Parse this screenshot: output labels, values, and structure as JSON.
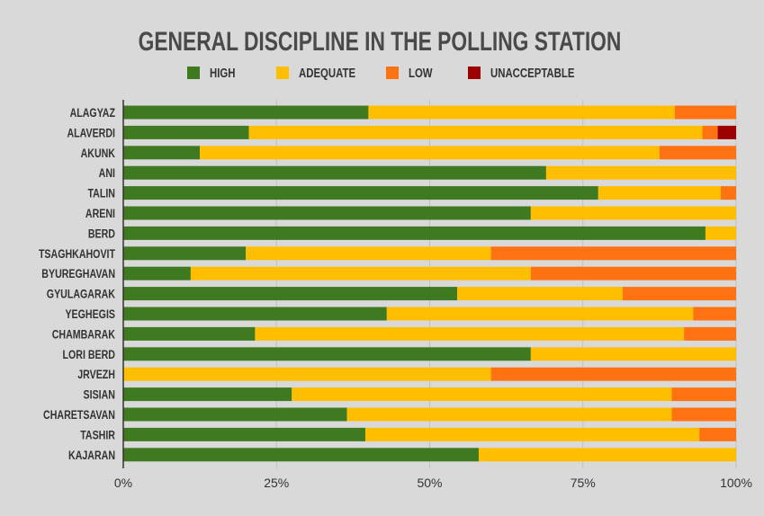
{
  "chart_data": {
    "type": "bar",
    "orientation": "horizontal",
    "stacked": true,
    "title": "GENERAL DISCIPLINE IN THE POLLING STATION",
    "legend_position": "top",
    "grid": true,
    "xlim": [
      0,
      100
    ],
    "x_ticks": [
      "0%",
      "25%",
      "50%",
      "75%",
      "100%"
    ],
    "categories": [
      "ALAGYAZ",
      "ALAVERDI",
      "AKUNK",
      "ANI",
      "TALIN",
      "ARENI",
      "BERD",
      "TSAGHKAHOVIT",
      "BYUREGHAVAN",
      "GYULAGARAK",
      "YEGHEGIS",
      "CHAMBARAK",
      "LORI BERD",
      "JRVEZH",
      "SISIAN",
      "CHARETSAVAN",
      "TASHIR",
      "KAJARAN"
    ],
    "series": [
      {
        "name": "HIGH",
        "color": "#3f7a21",
        "values": [
          40,
          20.5,
          12.5,
          69,
          77.5,
          66.5,
          95,
          20,
          11,
          54.5,
          43,
          21.5,
          66.5,
          0,
          27.5,
          36.5,
          39.5,
          58
        ]
      },
      {
        "name": "ADEQUATE",
        "color": "#ffbf00",
        "values": [
          50,
          74,
          75,
          31,
          20,
          33.5,
          5,
          40,
          55.5,
          27,
          50,
          70,
          33.5,
          60,
          62,
          53,
          54.5,
          42
        ]
      },
      {
        "name": "LOW",
        "color": "#ff7211",
        "values": [
          10,
          2.5,
          12.5,
          0,
          2.5,
          0,
          0,
          40,
          33.5,
          18.5,
          7,
          8.5,
          0,
          40,
          10.5,
          10.5,
          6,
          0
        ]
      },
      {
        "name": "UNACCEPTABLE",
        "color": "#9c0000",
        "values": [
          0,
          3,
          0,
          0,
          0,
          0,
          0,
          0,
          0,
          0,
          0,
          0,
          0,
          0,
          0,
          0,
          0,
          0
        ]
      }
    ]
  }
}
